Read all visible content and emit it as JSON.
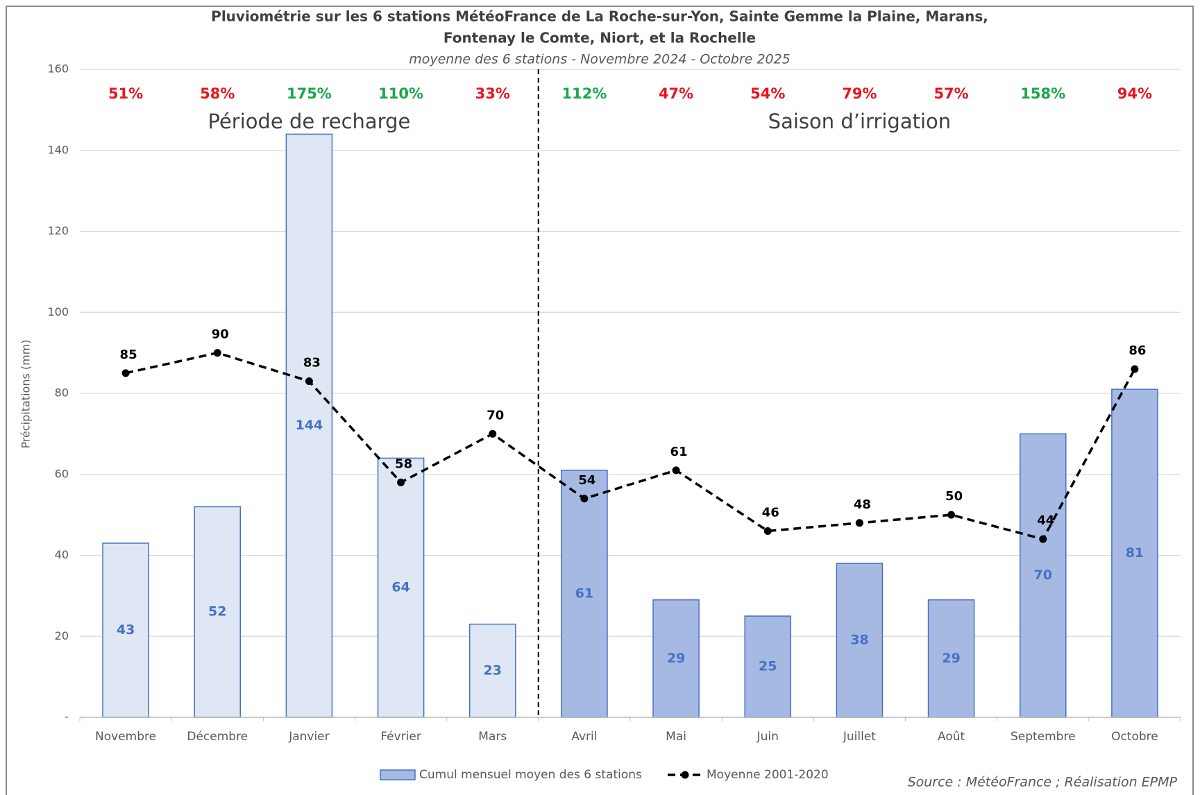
{
  "chart_data": {
    "type": "bar_line",
    "title": [
      "Pluviométrie sur les 6 stations MétéoFrance de La Roche-sur-Yon, Sainte Gemme la Plaine, Marans,",
      "Fontenay le Comte, Niort, et la Rochelle"
    ],
    "subtitle": "moyenne des 6 stations - Novembre 2024 - Octobre 2025",
    "y_label": "Précipitations (mm)",
    "source": "Source : MétéoFrance ; Réalisation EPMP",
    "sections": [
      "Période de recharge",
      "Saison d’irrigation"
    ],
    "categories": [
      "Novembre",
      "Décembre",
      "Janvier",
      "Février",
      "Mars",
      "Avril",
      "Mai",
      "Juin",
      "Juillet",
      "Août",
      "Septembre",
      "Octobre"
    ],
    "annotations": [
      {
        "text": "51%",
        "color": "#e8141e"
      },
      {
        "text": "58%",
        "color": "#e8141e"
      },
      {
        "text": "175%",
        "color": "#1aa64a"
      },
      {
        "text": "110%",
        "color": "#1aa64a"
      },
      {
        "text": "33%",
        "color": "#e8141e"
      },
      {
        "text": "112%",
        "color": "#1aa64a"
      },
      {
        "text": "47%",
        "color": "#e8141e"
      },
      {
        "text": "54%",
        "color": "#e8141e"
      },
      {
        "text": "79%",
        "color": "#e8141e"
      },
      {
        "text": "57%",
        "color": "#e8141e"
      },
      {
        "text": "158%",
        "color": "#1aa64a"
      },
      {
        "text": "94%",
        "color": "#e8141e"
      }
    ],
    "series": [
      {
        "name": "Cumul mensuel moyen des 6 stations",
        "type": "bar",
        "color": "#a6b9e3",
        "stroke": "#4472c4",
        "colors": [
          "#dee7f3",
          "#dee7f3",
          "#dee7f3",
          "#dee7f3",
          "#dee7f3",
          "#a6b9e3",
          "#a6b9e3",
          "#a6b9e3",
          "#a6b9e3",
          "#a6b9e3",
          "#a6b9e3",
          "#a6b9e3"
        ],
        "label_color": "#4472c4",
        "values": [
          43,
          52,
          144,
          64,
          23,
          61,
          29,
          25,
          38,
          29,
          70,
          81
        ]
      },
      {
        "name": "Moyenne 2001-2020",
        "type": "line",
        "color": "#000000",
        "dashed": true,
        "values": [
          85,
          90,
          83,
          58,
          70,
          54,
          61,
          46,
          48,
          50,
          44,
          86
        ]
      }
    ],
    "ylim": [
      0,
      160
    ],
    "yticks": [
      {
        "value": 0,
        "label": "-"
      },
      20,
      40,
      60,
      80,
      100,
      120,
      140,
      160
    ],
    "grid": true
  }
}
